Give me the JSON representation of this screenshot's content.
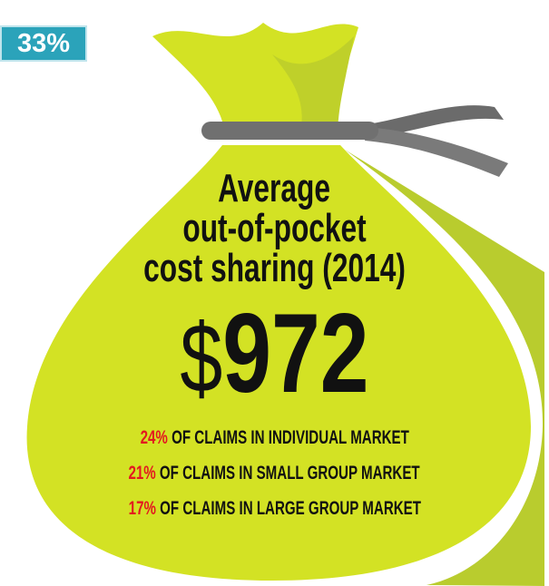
{
  "badge": "33%",
  "title": [
    "Average",
    "out-of-pocket",
    "cost sharing (2014)"
  ],
  "amount": {
    "currency": "$",
    "value": "972"
  },
  "claims": [
    {
      "percent": "24%",
      "text": "OF CLAIMS IN INDIVIDUAL MARKET"
    },
    {
      "percent": "21%",
      "text": "OF CLAIMS IN SMALL GROUP MARKET"
    },
    {
      "percent": "17%",
      "text": "OF CLAIMS IN LARGE GROUP MARKET"
    }
  ]
}
